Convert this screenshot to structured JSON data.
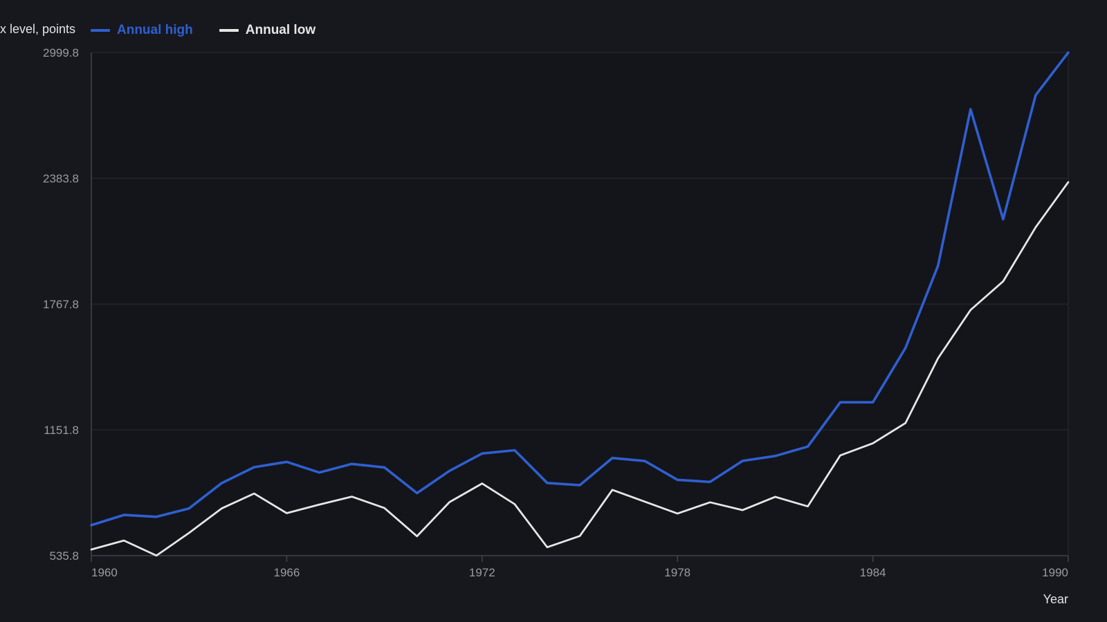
{
  "chart_data": {
    "type": "line",
    "title": "",
    "xlabel": "Year",
    "ylabel": "x level, points",
    "x": [
      1960,
      1961,
      1962,
      1963,
      1964,
      1965,
      1966,
      1967,
      1968,
      1969,
      1970,
      1971,
      1972,
      1973,
      1974,
      1975,
      1976,
      1977,
      1978,
      1979,
      1980,
      1981,
      1982,
      1983,
      1984,
      1985,
      1986,
      1987,
      1988,
      1989,
      1990
    ],
    "series": [
      {
        "name": "Annual high",
        "color": "#2f5fd1",
        "values": [
          685,
          735,
          726,
          767,
          891,
          969,
          995,
          943,
          985,
          968,
          842,
          951,
          1036,
          1052,
          892,
          881,
          1014,
          999,
          907,
          897,
          1000,
          1024,
          1070,
          1287,
          1287,
          1553,
          1955,
          2722,
          2183,
          2791,
          2999.8
        ]
      },
      {
        "name": "Annual low",
        "color": "#e6e6e6",
        "values": [
          566,
          610,
          536,
          647,
          767,
          840,
          744,
          786,
          825,
          769,
          631,
          798,
          889,
          788,
          577,
          632,
          858,
          800,
          742,
          797,
          759,
          824,
          777,
          1027,
          1086,
          1185,
          1502,
          1739,
          1879,
          2144,
          2365
        ]
      }
    ],
    "xlim": [
      1960,
      1990
    ],
    "ylim": [
      535.8,
      2999.8
    ],
    "yticks": [
      "535.8",
      "1151.8",
      "1767.8",
      "2383.8",
      "2999.8"
    ],
    "ytick_values": [
      535.8,
      1151.8,
      1767.8,
      2383.8,
      2999.8
    ],
    "xticks": [
      "1960",
      "1966",
      "1972",
      "1978",
      "1984",
      "1990"
    ],
    "xtick_values": [
      1960,
      1966,
      1972,
      1978,
      1984,
      1990
    ],
    "grid": true,
    "legend_position": "top-left"
  },
  "colors": {
    "background": "#17181d",
    "plot_background": "#14151a",
    "grid": "#2b2c33",
    "axis": "#43444b",
    "tick_text": "#9a9ba1",
    "label_text": "#e3e4e8"
  }
}
